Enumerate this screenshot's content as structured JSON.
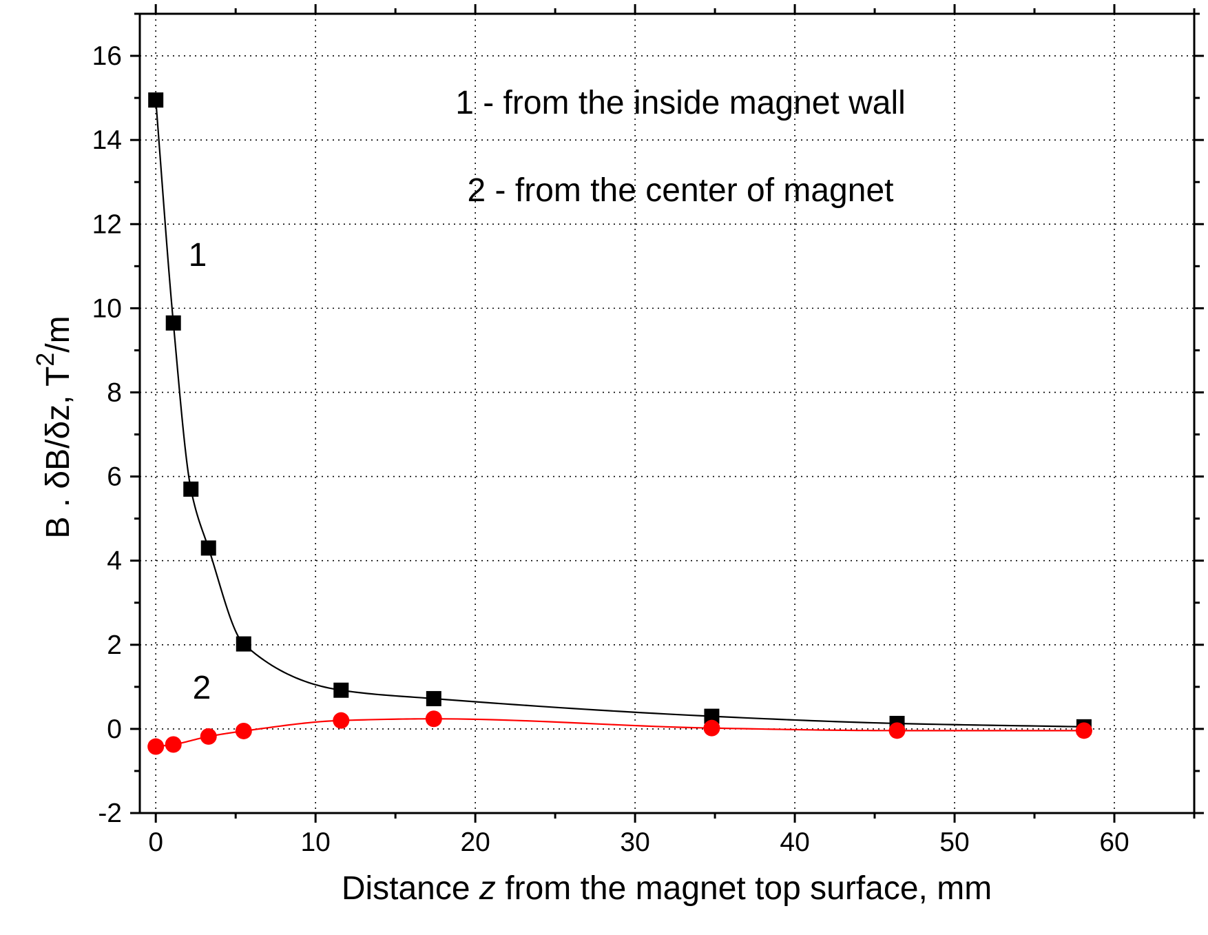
{
  "chart_data": {
    "type": "scatter",
    "title": "",
    "xlabel": {
      "before": "Distance ",
      "var": "z",
      "after": " from the magnet top surface, mm"
    },
    "ylabel": {
      "main": "B . δB/δz,  T",
      "sup": "2",
      "tail": "/m"
    },
    "xlim": [
      -1,
      65
    ],
    "ylim": [
      -2,
      17
    ],
    "xticks": [
      0,
      10,
      20,
      30,
      40,
      50,
      60
    ],
    "yticks": [
      -2,
      0,
      2,
      4,
      6,
      8,
      10,
      12,
      14,
      16
    ],
    "grid": true,
    "legend": [
      "1 - from the inside magnet wall",
      "2 - from the center of  magnet"
    ],
    "series": [
      {
        "name": "1",
        "label": "1",
        "marker": "square",
        "color": "#000000",
        "x": [
          0,
          1.1,
          2.2,
          3.3,
          5.5,
          11.6,
          17.4,
          34.8,
          46.4,
          58.1
        ],
        "y": [
          14.95,
          9.65,
          5.7,
          4.3,
          2.02,
          0.92,
          0.72,
          0.3,
          0.13,
          0.05
        ]
      },
      {
        "name": "2",
        "label": "2",
        "marker": "circle",
        "color": "#ff0000",
        "x": [
          0,
          1.1,
          3.3,
          5.5,
          11.6,
          17.4,
          34.8,
          46.4,
          58.1
        ],
        "y": [
          -0.42,
          -0.37,
          -0.18,
          -0.05,
          0.2,
          0.24,
          0.02,
          -0.04,
          -0.04
        ]
      }
    ]
  }
}
